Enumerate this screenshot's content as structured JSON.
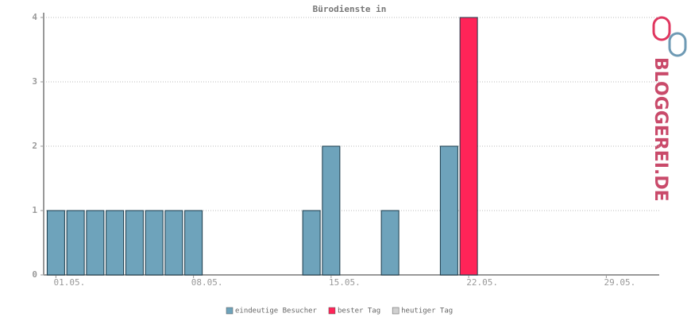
{
  "chart_data": {
    "type": "bar",
    "title": "Bürodienste in",
    "categories": [
      "01.05.",
      null,
      null,
      null,
      null,
      null,
      null,
      "08.05.",
      null,
      null,
      null,
      null,
      null,
      null,
      "15.05.",
      null,
      null,
      null,
      null,
      null,
      null,
      "22.05.",
      null,
      null,
      null,
      null,
      null,
      null,
      "29.05.",
      null,
      null
    ],
    "series": [
      {
        "name": "eindeutige Besucher",
        "color": "#6ea3bb",
        "values": [
          1,
          1,
          1,
          1,
          1,
          1,
          1,
          1,
          0,
          0,
          0,
          0,
          0,
          1,
          2,
          0,
          0,
          1,
          0,
          0,
          2,
          null,
          0,
          0,
          0,
          0,
          0,
          0,
          0,
          0,
          0
        ]
      },
      {
        "name": "bester Tag",
        "color": "#ff2458",
        "values": [
          null,
          null,
          null,
          null,
          null,
          null,
          null,
          null,
          null,
          null,
          null,
          null,
          null,
          null,
          null,
          null,
          null,
          null,
          null,
          null,
          null,
          4,
          null,
          null,
          null,
          null,
          null,
          null,
          null,
          null,
          null
        ]
      },
      {
        "name": "heutiger Tag",
        "color": "#d0d0d0",
        "values": [
          null,
          null,
          null,
          null,
          null,
          null,
          null,
          null,
          null,
          null,
          null,
          null,
          null,
          null,
          null,
          null,
          null,
          null,
          null,
          null,
          null,
          null,
          null,
          null,
          null,
          null,
          null,
          null,
          null,
          null,
          null
        ]
      }
    ],
    "ylim": [
      0,
      4
    ],
    "yticks": [
      0,
      1,
      2,
      3,
      4
    ],
    "grid": true,
    "logo": "BLOGGEREI.DE"
  }
}
